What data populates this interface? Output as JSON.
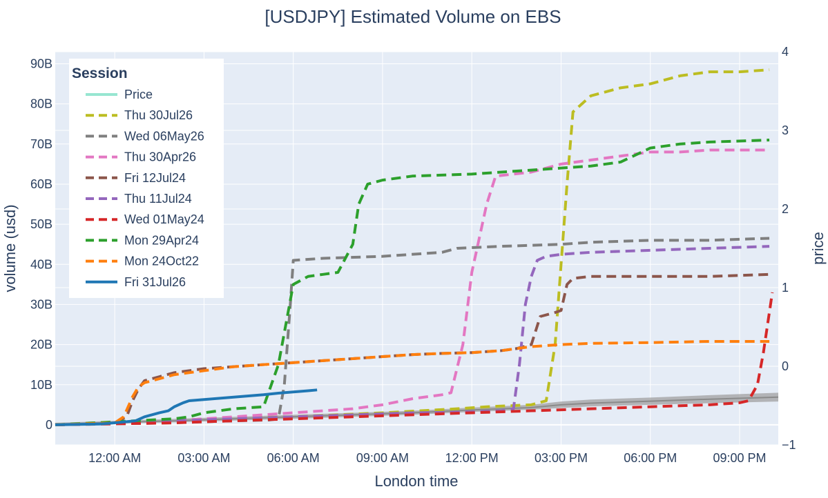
{
  "chart_data": {
    "type": "line",
    "title": "[USDJPY] Estimated Volume on EBS",
    "xlabel": "London time",
    "ylabel": "volume (usd)",
    "y2label": "price",
    "xlim": [
      -2,
      22.3
    ],
    "ylim": [
      -5,
      93
    ],
    "y2lim": [
      -1,
      4
    ],
    "x_ticks": [
      {
        "v": 0,
        "label": "12:00 AM"
      },
      {
        "v": 3,
        "label": "03:00 AM"
      },
      {
        "v": 6,
        "label": "06:00 AM"
      },
      {
        "v": 9,
        "label": "09:00 AM"
      },
      {
        "v": 12,
        "label": "12:00 PM"
      },
      {
        "v": 15,
        "label": "03:00 PM"
      },
      {
        "v": 18,
        "label": "06:00 PM"
      },
      {
        "v": 21,
        "label": "09:00 PM"
      }
    ],
    "y_ticks": [
      {
        "v": 0,
        "label": "0"
      },
      {
        "v": 10,
        "label": "10B"
      },
      {
        "v": 20,
        "label": "20B"
      },
      {
        "v": 30,
        "label": "30B"
      },
      {
        "v": 40,
        "label": "40B"
      },
      {
        "v": 50,
        "label": "50B"
      },
      {
        "v": 60,
        "label": "60B"
      },
      {
        "v": 70,
        "label": "70B"
      },
      {
        "v": 80,
        "label": "80B"
      },
      {
        "v": 90,
        "label": "90B"
      }
    ],
    "y2_ticks": [
      {
        "v": -1,
        "label": "−1"
      },
      {
        "v": 0,
        "label": "0"
      },
      {
        "v": 1,
        "label": "1"
      },
      {
        "v": 2,
        "label": "2"
      },
      {
        "v": 3,
        "label": "3"
      },
      {
        "v": 4,
        "label": "4"
      }
    ],
    "legend_title": "Session",
    "legend_position": "top-left",
    "grid": true,
    "series": [
      {
        "name": "Price",
        "color": "#7ee0c6",
        "dash": false,
        "legend_dim": true,
        "x": [],
        "y": []
      },
      {
        "name": "Thu 30Jul26",
        "color": "#bcbd22",
        "dash": true,
        "x": [
          -2,
          1,
          3,
          6,
          9,
          11.5,
          12.5,
          14,
          14.5,
          14.8,
          15,
          15.2,
          15.4,
          16,
          17,
          18,
          19,
          20,
          21,
          22
        ],
        "y": [
          0,
          0.5,
          1.5,
          2,
          3,
          4,
          4.5,
          5,
          6,
          20,
          40,
          60,
          78,
          82,
          84,
          85,
          87,
          88,
          88,
          88.5
        ]
      },
      {
        "name": "Wed 06May26",
        "color": "#7f7f7f",
        "dash": true,
        "x": [
          -2,
          2,
          4,
          5.2,
          5.5,
          5.7,
          5.9,
          6,
          7,
          9,
          11,
          11.5,
          13,
          15,
          16,
          18,
          20,
          22
        ],
        "y": [
          0,
          0.5,
          1,
          1.2,
          1.5,
          10,
          30,
          41,
          41.5,
          42,
          43,
          44,
          44.5,
          45,
          45.5,
          46,
          46,
          46.5
        ]
      },
      {
        "name": "Thu 30Apr26",
        "color": "#e377c2",
        "dash": true,
        "x": [
          -2,
          2,
          4,
          6,
          8,
          9,
          10,
          11,
          11.3,
          11.7,
          12,
          12.5,
          12.8,
          14,
          15,
          16,
          17,
          18,
          19,
          20,
          22
        ],
        "y": [
          0,
          1,
          2,
          3,
          4,
          5,
          6.5,
          7.5,
          8,
          20,
          38,
          55,
          62,
          63,
          65,
          66,
          67,
          68,
          68,
          68.5,
          68.5
        ]
      },
      {
        "name": "Fri 12Jul24",
        "color": "#8c564b",
        "dash": true,
        "x": [
          -2,
          0,
          0.4,
          0.6,
          0.8,
          1,
          1.5,
          2,
          3,
          4,
          5,
          6,
          7,
          8,
          9,
          10,
          11,
          12,
          13,
          13.5,
          14,
          14.3,
          14.8,
          15,
          15.2,
          15.4,
          16,
          18,
          20,
          22
        ],
        "y": [
          0,
          0.5,
          2,
          6,
          9,
          11,
          12,
          13,
          14,
          14.5,
          15,
          15.5,
          16,
          16.5,
          17,
          17.5,
          17.8,
          18,
          18.5,
          19,
          20,
          27,
          28,
          28.5,
          35,
          36.5,
          37,
          37,
          37,
          37.5
        ]
      },
      {
        "name": "Thu 11Jul24",
        "color": "#9467bd",
        "dash": true,
        "x": [
          -2,
          2,
          4,
          6,
          8,
          10,
          12,
          13,
          13.4,
          13.6,
          13.8,
          14,
          14.2,
          14.5,
          15,
          16,
          18,
          20,
          22
        ],
        "y": [
          0,
          1,
          1.5,
          2,
          2.5,
          3,
          3.2,
          3.5,
          4,
          15,
          30,
          37,
          41,
          42,
          42.5,
          43,
          43.5,
          44,
          44.5
        ]
      },
      {
        "name": "Wed 01May24",
        "color": "#d62728",
        "dash": true,
        "x": [
          -2,
          2,
          4,
          6,
          8,
          10,
          12,
          14,
          16,
          18,
          20,
          21,
          21.3,
          21.6,
          21.8,
          22,
          22.1
        ],
        "y": [
          0,
          0.5,
          1,
          1.5,
          2,
          2.5,
          3,
          3.5,
          4,
          4.5,
          5,
          5.5,
          6,
          10,
          18,
          28,
          33
        ]
      },
      {
        "name": "Mon 29Apr24",
        "color": "#2ca02c",
        "dash": true,
        "x": [
          -2,
          2,
          2.5,
          3,
          4,
          5,
          5.5,
          6,
          6.5,
          7,
          7.5,
          8,
          8.2,
          8.5,
          9,
          10,
          12,
          13,
          14,
          15,
          16,
          17,
          18,
          19,
          20,
          22
        ],
        "y": [
          0,
          1.5,
          2,
          3,
          4,
          4.5,
          15,
          35,
          37,
          37.5,
          38,
          45,
          55,
          60,
          61,
          62,
          62.5,
          63,
          63.5,
          64,
          64.5,
          65.5,
          69,
          70,
          70.5,
          71
        ]
      },
      {
        "name": "Mon 24Oct22",
        "color": "#ff7f0e",
        "dash": true,
        "x": [
          -2,
          0,
          0.3,
          0.6,
          0.8,
          1,
          1.5,
          2,
          3,
          4,
          5,
          6,
          7,
          8,
          9,
          10,
          11,
          12,
          13,
          14,
          15,
          16,
          18,
          20,
          22
        ],
        "y": [
          0,
          0.5,
          2,
          7,
          9.5,
          10.5,
          11.5,
          12.5,
          13.5,
          14.5,
          15,
          15.5,
          16,
          16.5,
          17,
          17.5,
          17.8,
          18,
          18.5,
          19.5,
          20,
          20.3,
          20.5,
          20.8,
          20.8
        ]
      },
      {
        "name": "Fri 31Jul26",
        "color": "#1f77b4",
        "dash": false,
        "x": [
          -2,
          -0.5,
          0,
          0.7,
          1,
          1.5,
          1.8,
          2,
          2.3,
          2.5,
          3,
          3.5,
          4,
          4.5,
          5,
          5.5,
          6,
          6.5,
          6.8
        ],
        "y": [
          0,
          0.2,
          0.5,
          1,
          2,
          3,
          3.5,
          4.5,
          5.5,
          6,
          6.3,
          6.6,
          6.9,
          7.2,
          7.5,
          7.9,
          8.2,
          8.5,
          8.7
        ]
      }
    ],
    "band": {
      "color": "#a0a0a0",
      "x": [
        -2,
        2,
        6,
        10,
        12,
        14,
        15,
        16,
        18,
        20,
        22.3
      ],
      "upper": [
        0.5,
        1.5,
        2.5,
        3.5,
        4.3,
        5,
        5.8,
        6.3,
        6.8,
        7.4,
        8
      ],
      "lower": [
        0,
        0.6,
        1.5,
        2.5,
        3.2,
        3.8,
        4.2,
        4.6,
        5,
        5.4,
        5.8
      ],
      "mid": [
        0.2,
        1,
        2,
        3,
        3.7,
        4.3,
        5,
        5.4,
        5.9,
        6.4,
        6.9
      ]
    }
  }
}
